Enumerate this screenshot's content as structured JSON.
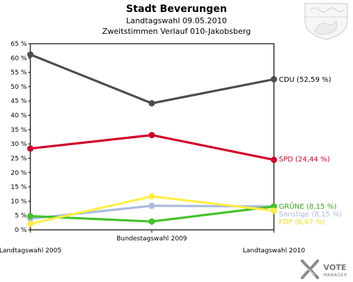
{
  "chart_data": {
    "type": "line",
    "title": "Stadt Beverungen",
    "subtitle_1": "Landtagswahl 09.05.2010",
    "subtitle_2": "Zweitstimmen Verlauf 010-Jakobsberg",
    "categories": [
      "Landtagswahl 2005",
      "Bundestagswahl 2009",
      "Landtagswahl 2010"
    ],
    "y_ticks": [
      "0 %",
      "5 %",
      "10 %",
      "15 %",
      "20 %",
      "25 %",
      "30 %",
      "35 %",
      "40 %",
      "45 %",
      "50 %",
      "55 %",
      "60 %",
      "65 %"
    ],
    "ylim": [
      0,
      65
    ],
    "grid": false,
    "series": [
      {
        "name": "CDU",
        "values": [
          61.2,
          44.2,
          52.59
        ],
        "color": "#4d4d4d",
        "end_label": "CDU (52,59 %)",
        "label_color": "#000000"
      },
      {
        "name": "SPD",
        "values": [
          28.4,
          33.1,
          24.44
        ],
        "color": "#d0002a",
        "end_label": "SPD (24,44 %)",
        "label_color": "#d0002a"
      },
      {
        "name": "GRÜNE",
        "values": [
          4.8,
          2.9,
          8.15
        ],
        "color": "#44c22a",
        "end_label": "GRÜNE (8,15 %)",
        "label_color": "#33aa22"
      },
      {
        "name": "Sonstige",
        "values": [
          3.9,
          8.4,
          8.15
        ],
        "color": "#aabbdd",
        "end_label": "Sonstige (8,15 %)",
        "label_color": "#aabbdd"
      },
      {
        "name": "FDP",
        "values": [
          2.1,
          11.7,
          6.67
        ],
        "color": "#ffee44",
        "end_label": "FDP (6,67 %)",
        "label_color": "#eedd22"
      }
    ]
  },
  "logo": {
    "brand": "VOTE",
    "brand_sub": "MANAGER",
    "crest_icon": "coat-of-arms-icon"
  }
}
